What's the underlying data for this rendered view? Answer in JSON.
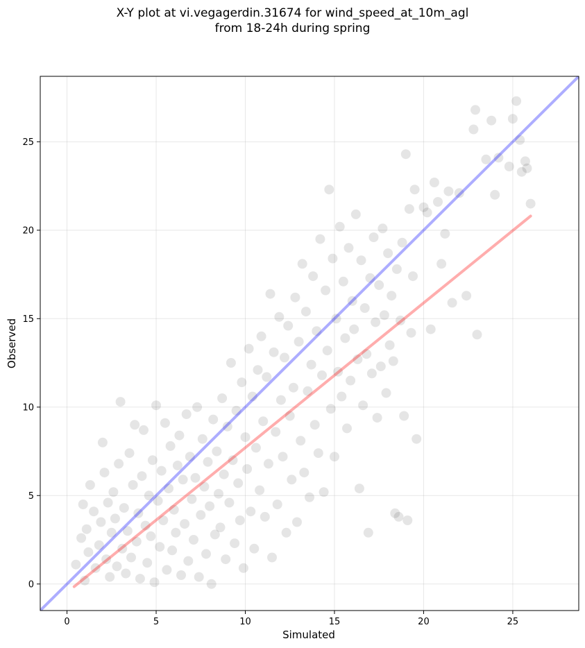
{
  "title": {
    "line1": "X-Y plot at vi.vegagerdin.31674 for wind_speed_at_10m_agl",
    "line2": "from 18-24h during spring"
  },
  "chart_data": {
    "type": "scatter",
    "title": "X-Y plot at vi.vegagerdin.31674 for wind_speed_at_10m_agl from 18-24h during spring",
    "xlabel": "Simulated",
    "ylabel": "Observed",
    "xlim": [
      -1.5,
      28.7
    ],
    "ylim": [
      -1.5,
      28.7
    ],
    "xticks": [
      0,
      5,
      10,
      15,
      20,
      25
    ],
    "yticks": [
      0,
      5,
      10,
      15,
      20,
      25
    ],
    "grid": true,
    "point_color": "#000000",
    "point_opacity": 0.1,
    "series": [
      {
        "type": "scatter",
        "points": [
          [
            0.5,
            1.1
          ],
          [
            0.8,
            2.6
          ],
          [
            0.9,
            4.5
          ],
          [
            1.0,
            0.2
          ],
          [
            1.1,
            3.1
          ],
          [
            1.3,
            5.6
          ],
          [
            1.2,
            1.8
          ],
          [
            1.5,
            4.1
          ],
          [
            1.6,
            0.9
          ],
          [
            1.8,
            2.2
          ],
          [
            1.9,
            3.5
          ],
          [
            2.0,
            8.0
          ],
          [
            2.1,
            6.3
          ],
          [
            2.2,
            1.4
          ],
          [
            2.3,
            4.6
          ],
          [
            2.4,
            0.4
          ],
          [
            2.5,
            2.9
          ],
          [
            2.6,
            5.2
          ],
          [
            2.7,
            3.7
          ],
          [
            2.8,
            1.0
          ],
          [
            2.9,
            6.8
          ],
          [
            3.0,
            10.3
          ],
          [
            3.1,
            2.0
          ],
          [
            3.2,
            4.3
          ],
          [
            3.3,
            0.6
          ],
          [
            3.4,
            3.0
          ],
          [
            3.5,
            7.4
          ],
          [
            3.6,
            1.5
          ],
          [
            3.7,
            5.6
          ],
          [
            3.8,
            9.0
          ],
          [
            3.9,
            2.4
          ],
          [
            4.0,
            4.0
          ],
          [
            4.1,
            0.3
          ],
          [
            4.2,
            6.1
          ],
          [
            4.3,
            8.7
          ],
          [
            4.4,
            3.3
          ],
          [
            4.5,
            1.2
          ],
          [
            4.6,
            5.0
          ],
          [
            4.7,
            2.7
          ],
          [
            4.8,
            7.0
          ],
          [
            4.9,
            0.1
          ],
          [
            5.0,
            10.1
          ],
          [
            5.1,
            4.7
          ],
          [
            5.2,
            2.1
          ],
          [
            5.3,
            6.4
          ],
          [
            5.4,
            3.6
          ],
          [
            5.5,
            9.1
          ],
          [
            5.6,
            0.8
          ],
          [
            5.7,
            5.4
          ],
          [
            5.8,
            7.8
          ],
          [
            5.9,
            1.9
          ],
          [
            6.0,
            4.2
          ],
          [
            6.1,
            2.9
          ],
          [
            6.2,
            6.7
          ],
          [
            6.3,
            8.4
          ],
          [
            6.4,
            0.5
          ],
          [
            6.5,
            5.9
          ],
          [
            6.6,
            3.4
          ],
          [
            6.7,
            9.6
          ],
          [
            6.8,
            1.3
          ],
          [
            6.9,
            7.2
          ],
          [
            7.0,
            4.8
          ],
          [
            7.1,
            2.5
          ],
          [
            7.2,
            6.0
          ],
          [
            7.3,
            10.0
          ],
          [
            7.4,
            0.4
          ],
          [
            7.5,
            3.9
          ],
          [
            7.6,
            8.2
          ],
          [
            7.7,
            5.5
          ],
          [
            7.8,
            1.7
          ],
          [
            7.9,
            6.9
          ],
          [
            8.0,
            4.4
          ],
          [
            8.1,
            0.0
          ],
          [
            8.2,
            9.3
          ],
          [
            8.3,
            2.8
          ],
          [
            8.4,
            7.5
          ],
          [
            8.5,
            5.1
          ],
          [
            8.6,
            3.2
          ],
          [
            8.7,
            10.5
          ],
          [
            8.8,
            6.2
          ],
          [
            8.9,
            1.4
          ],
          [
            9.0,
            8.9
          ],
          [
            9.1,
            4.6
          ],
          [
            9.2,
            12.5
          ],
          [
            9.3,
            7.0
          ],
          [
            9.4,
            2.3
          ],
          [
            9.5,
            9.8
          ],
          [
            9.6,
            5.7
          ],
          [
            9.7,
            3.6
          ],
          [
            9.8,
            11.4
          ],
          [
            9.9,
            0.9
          ],
          [
            10.0,
            8.3
          ],
          [
            10.1,
            6.5
          ],
          [
            10.2,
            13.3
          ],
          [
            10.3,
            4.1
          ],
          [
            10.4,
            10.6
          ],
          [
            10.5,
            2.0
          ],
          [
            10.6,
            7.7
          ],
          [
            10.7,
            12.1
          ],
          [
            10.8,
            5.3
          ],
          [
            10.9,
            14.0
          ],
          [
            11.0,
            9.2
          ],
          [
            11.1,
            3.8
          ],
          [
            11.2,
            11.7
          ],
          [
            11.3,
            6.8
          ],
          [
            11.4,
            16.4
          ],
          [
            11.5,
            1.5
          ],
          [
            11.6,
            13.1
          ],
          [
            11.7,
            8.6
          ],
          [
            11.8,
            4.5
          ],
          [
            11.9,
            15.1
          ],
          [
            12.0,
            10.4
          ],
          [
            12.1,
            7.2
          ],
          [
            12.2,
            12.8
          ],
          [
            12.3,
            2.9
          ],
          [
            12.4,
            14.6
          ],
          [
            12.5,
            9.5
          ],
          [
            12.6,
            5.9
          ],
          [
            12.7,
            11.1
          ],
          [
            12.8,
            16.2
          ],
          [
            12.9,
            3.5
          ],
          [
            13.0,
            13.7
          ],
          [
            13.1,
            8.1
          ],
          [
            13.2,
            18.1
          ],
          [
            13.3,
            6.3
          ],
          [
            13.4,
            15.4
          ],
          [
            13.5,
            10.9
          ],
          [
            13.6,
            4.9
          ],
          [
            13.7,
            12.4
          ],
          [
            13.8,
            17.4
          ],
          [
            13.9,
            9.0
          ],
          [
            14.0,
            14.3
          ],
          [
            14.1,
            7.4
          ],
          [
            14.2,
            19.5
          ],
          [
            14.3,
            11.8
          ],
          [
            14.4,
            5.2
          ],
          [
            14.5,
            16.6
          ],
          [
            14.6,
            13.2
          ],
          [
            14.7,
            22.3
          ],
          [
            14.8,
            9.9
          ],
          [
            14.9,
            18.4
          ],
          [
            15.0,
            7.2
          ],
          [
            15.1,
            15.0
          ],
          [
            15.2,
            12.0
          ],
          [
            15.3,
            20.2
          ],
          [
            15.4,
            10.6
          ],
          [
            15.5,
            17.1
          ],
          [
            15.6,
            13.9
          ],
          [
            15.7,
            8.8
          ],
          [
            15.8,
            19.0
          ],
          [
            15.9,
            11.5
          ],
          [
            16.0,
            16.0
          ],
          [
            16.1,
            14.4
          ],
          [
            16.2,
            20.9
          ],
          [
            16.3,
            12.7
          ],
          [
            16.4,
            5.4
          ],
          [
            16.5,
            18.3
          ],
          [
            16.6,
            10.1
          ],
          [
            16.7,
            15.6
          ],
          [
            16.8,
            13.0
          ],
          [
            16.9,
            2.9
          ],
          [
            17.0,
            17.3
          ],
          [
            17.1,
            11.9
          ],
          [
            17.2,
            19.6
          ],
          [
            17.3,
            14.8
          ],
          [
            17.4,
            9.4
          ],
          [
            17.5,
            16.9
          ],
          [
            17.6,
            12.3
          ],
          [
            17.7,
            20.1
          ],
          [
            17.8,
            15.2
          ],
          [
            17.9,
            10.8
          ],
          [
            18.0,
            18.7
          ],
          [
            18.1,
            13.5
          ],
          [
            18.2,
            16.3
          ],
          [
            18.3,
            12.6
          ],
          [
            18.4,
            4.0
          ],
          [
            18.5,
            17.8
          ],
          [
            18.6,
            3.8
          ],
          [
            18.7,
            14.9
          ],
          [
            18.8,
            19.3
          ],
          [
            18.9,
            9.5
          ],
          [
            19.0,
            24.3
          ],
          [
            19.1,
            3.6
          ],
          [
            19.2,
            21.2
          ],
          [
            19.3,
            14.2
          ],
          [
            19.4,
            17.4
          ],
          [
            19.5,
            22.3
          ],
          [
            19.6,
            8.2
          ],
          [
            20.0,
            21.3
          ],
          [
            20.2,
            21.0
          ],
          [
            20.4,
            14.4
          ],
          [
            20.6,
            22.7
          ],
          [
            20.8,
            21.6
          ],
          [
            21.0,
            18.1
          ],
          [
            21.2,
            19.8
          ],
          [
            21.4,
            22.2
          ],
          [
            21.6,
            15.9
          ],
          [
            22.0,
            22.1
          ],
          [
            22.4,
            16.3
          ],
          [
            22.8,
            25.7
          ],
          [
            22.9,
            26.8
          ],
          [
            23.0,
            14.1
          ],
          [
            23.5,
            24.0
          ],
          [
            23.8,
            26.2
          ],
          [
            24.0,
            22.0
          ],
          [
            24.2,
            24.1
          ],
          [
            24.8,
            23.6
          ],
          [
            25.0,
            26.3
          ],
          [
            25.2,
            27.3
          ],
          [
            25.4,
            25.1
          ],
          [
            25.5,
            23.3
          ],
          [
            25.7,
            23.9
          ],
          [
            25.8,
            23.5
          ],
          [
            26.0,
            21.5
          ]
        ]
      }
    ],
    "lines": [
      {
        "name": "",
        "color": "#0000ff",
        "opacity": 0.32,
        "x": [
          -1.5,
          28.7
        ],
        "y": [
          -1.5,
          28.7
        ]
      },
      {
        "name": "",
        "color": "#ff0000",
        "opacity": 0.32,
        "x": [
          0.4,
          26.0
        ],
        "y": [
          -0.15,
          20.8
        ]
      }
    ]
  }
}
